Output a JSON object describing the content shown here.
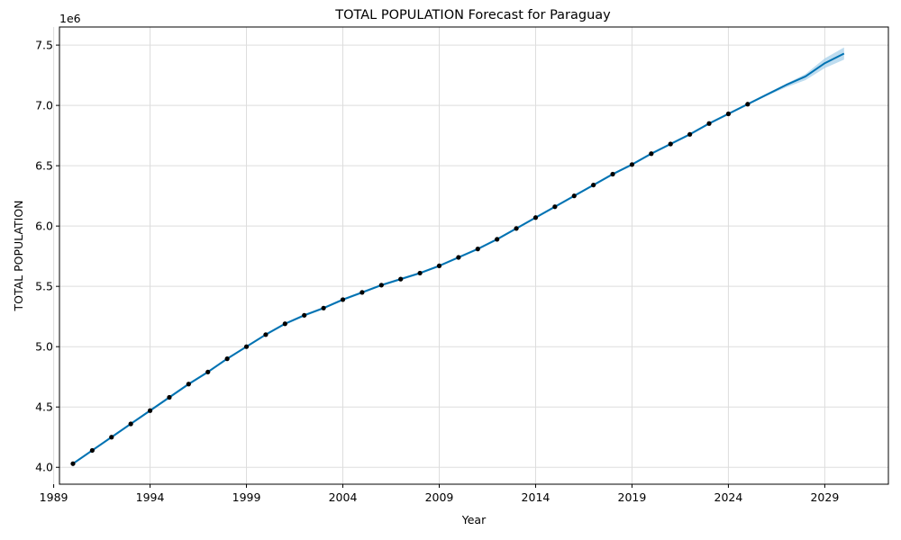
{
  "chart_data": {
    "type": "line",
    "title": "TOTAL POPULATION Forecast for Paraguay",
    "xlabel": "Year",
    "ylabel": "TOTAL POPULATION",
    "y_offset_label": "1e6",
    "xlim": [
      1989.3,
      2032.3
    ],
    "ylim": [
      3.86,
      7.65
    ],
    "x_ticks": [
      1989,
      1994,
      1999,
      2004,
      2009,
      2014,
      2019,
      2024,
      2029
    ],
    "y_ticks": [
      4.0,
      4.5,
      5.0,
      5.5,
      6.0,
      6.5,
      7.0,
      7.5
    ],
    "y_tick_labels": [
      "4.0",
      "4.5",
      "5.0",
      "5.5",
      "6.0",
      "6.5",
      "7.0",
      "7.5"
    ],
    "grid": true,
    "colors": {
      "forecast": "#0072b2",
      "interval": "#a8d0ea",
      "observed": "#000000",
      "grid": "#dddddd"
    },
    "series": [
      {
        "role": "observed",
        "x": [
          1990,
          1991,
          1992,
          1993,
          1994,
          1995,
          1996,
          1997,
          1998,
          1999,
          2000,
          2001,
          2002,
          2003,
          2004,
          2005,
          2006,
          2007,
          2008,
          2009,
          2010,
          2011,
          2012,
          2013,
          2014,
          2015,
          2016,
          2017,
          2018,
          2019,
          2020,
          2021,
          2022,
          2023,
          2024,
          2025
        ],
        "y": [
          4.03,
          4.14,
          4.25,
          4.36,
          4.47,
          4.58,
          4.69,
          4.79,
          4.9,
          5.0,
          5.1,
          5.19,
          5.26,
          5.32,
          5.39,
          5.45,
          5.51,
          5.56,
          5.61,
          5.67,
          5.74,
          5.81,
          5.89,
          5.98,
          6.07,
          6.16,
          6.25,
          6.34,
          6.43,
          6.51,
          6.6,
          6.68,
          6.76,
          6.85,
          6.93,
          7.01
        ]
      },
      {
        "role": "forecast",
        "x": [
          1990,
          1991,
          1992,
          1993,
          1994,
          1995,
          1996,
          1997,
          1998,
          1999,
          2000,
          2001,
          2002,
          2003,
          2004,
          2005,
          2006,
          2007,
          2008,
          2009,
          2010,
          2011,
          2012,
          2013,
          2014,
          2015,
          2016,
          2017,
          2018,
          2019,
          2020,
          2021,
          2022,
          2023,
          2024,
          2025,
          2026,
          2027,
          2028,
          2029,
          2030
        ],
        "y": [
          4.03,
          4.14,
          4.25,
          4.36,
          4.47,
          4.58,
          4.69,
          4.79,
          4.9,
          5.0,
          5.1,
          5.19,
          5.26,
          5.32,
          5.39,
          5.45,
          5.51,
          5.56,
          5.61,
          5.67,
          5.74,
          5.81,
          5.89,
          5.98,
          6.07,
          6.16,
          6.25,
          6.34,
          6.43,
          6.51,
          6.6,
          6.68,
          6.76,
          6.85,
          6.93,
          7.01,
          7.09,
          7.17,
          7.24,
          7.35,
          7.43
        ],
        "upper": [
          4.04,
          4.15,
          4.26,
          4.37,
          4.48,
          4.59,
          4.7,
          4.8,
          4.91,
          5.01,
          5.11,
          5.2,
          5.27,
          5.33,
          5.4,
          5.46,
          5.52,
          5.57,
          5.62,
          5.68,
          5.75,
          5.82,
          5.9,
          5.99,
          6.08,
          6.17,
          6.26,
          6.35,
          6.44,
          6.52,
          6.61,
          6.69,
          6.77,
          6.86,
          6.94,
          7.02,
          7.1,
          7.18,
          7.26,
          7.39,
          7.48
        ],
        "lower": [
          4.02,
          4.13,
          4.24,
          4.35,
          4.46,
          4.57,
          4.68,
          4.78,
          4.89,
          4.99,
          5.09,
          5.18,
          5.25,
          5.31,
          5.38,
          5.44,
          5.5,
          5.55,
          5.6,
          5.66,
          5.73,
          5.8,
          5.88,
          5.97,
          6.06,
          6.15,
          6.24,
          6.33,
          6.42,
          6.5,
          6.59,
          6.67,
          6.75,
          6.84,
          6.92,
          7.0,
          7.08,
          7.15,
          7.21,
          7.31,
          7.38
        ]
      }
    ]
  }
}
